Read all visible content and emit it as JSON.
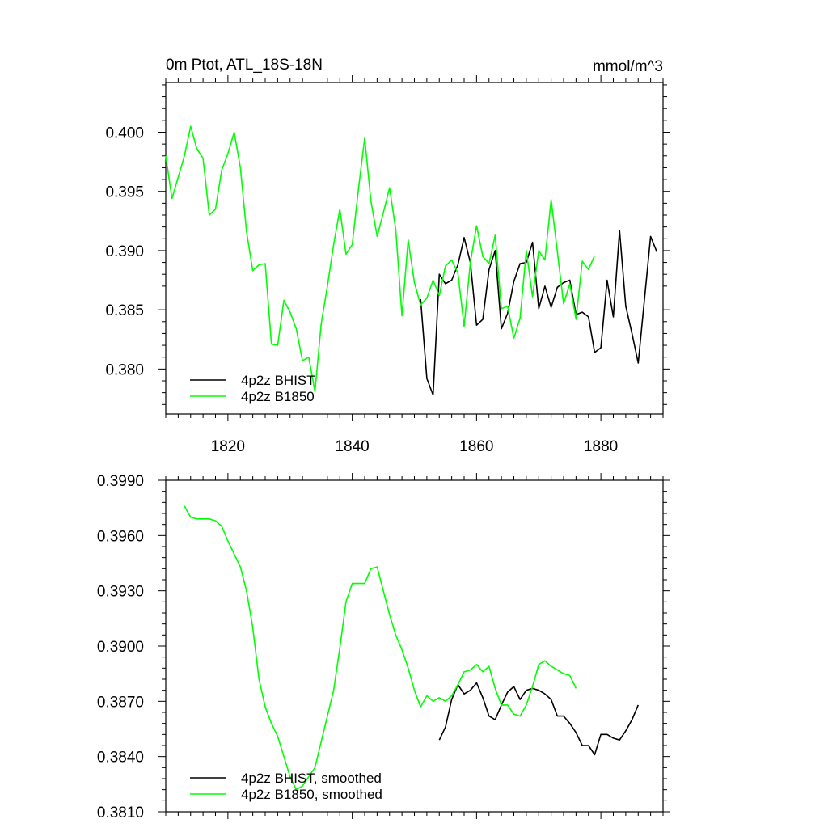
{
  "chart_data": [
    {
      "type": "line",
      "title": "0m Ptot, ATL_18S-18N",
      "units": "mmol/m^3",
      "xlim": [
        1810,
        1890
      ],
      "ylim": [
        0.3762,
        0.4042
      ],
      "xticks": [
        1820,
        1840,
        1860,
        1880
      ],
      "xtick_labels": [
        "1820",
        "1840",
        "1860",
        "1880"
      ],
      "yticks": [
        0.38,
        0.385,
        0.39,
        0.395,
        0.4
      ],
      "ytick_labels": [
        "0.380",
        "0.385",
        "0.390",
        "0.395",
        "0.400"
      ],
      "grid": false,
      "legend": "bottom-left",
      "series": [
        {
          "name": "4p2z BHIST",
          "color": "#000000",
          "x": [
            1851,
            1852,
            1853,
            1854,
            1855,
            1856,
            1857,
            1858,
            1859,
            1860,
            1861,
            1862,
            1863,
            1864,
            1865,
            1866,
            1867,
            1868,
            1869,
            1870,
            1871,
            1872,
            1873,
            1874,
            1875,
            1876,
            1877,
            1878,
            1879,
            1880,
            1881,
            1882,
            1883,
            1884,
            1885,
            1886,
            1887,
            1888,
            1889
          ],
          "y": [
            0.3859,
            0.3792,
            0.3778,
            0.388,
            0.3872,
            0.3875,
            0.3888,
            0.3911,
            0.389,
            0.3837,
            0.3842,
            0.3884,
            0.39,
            0.3834,
            0.3847,
            0.3874,
            0.3889,
            0.389,
            0.3907,
            0.3851,
            0.387,
            0.3852,
            0.3869,
            0.3873,
            0.3875,
            0.3846,
            0.3848,
            0.3844,
            0.3814,
            0.3818,
            0.3875,
            0.3844,
            0.3917,
            0.3853,
            0.383,
            0.3805,
            0.3858,
            0.3912,
            0.3899
          ]
        },
        {
          "name": "4p2z B1850",
          "color": "#00ff00",
          "x": [
            1810,
            1811,
            1812,
            1813,
            1814,
            1815,
            1816,
            1817,
            1818,
            1819,
            1820,
            1821,
            1822,
            1823,
            1824,
            1825,
            1826,
            1827,
            1828,
            1829,
            1830,
            1831,
            1832,
            1833,
            1834,
            1835,
            1836,
            1837,
            1838,
            1839,
            1840,
            1841,
            1842,
            1843,
            1844,
            1845,
            1846,
            1847,
            1848,
            1849,
            1850,
            1851,
            1852,
            1853,
            1854,
            1855,
            1856,
            1857,
            1858,
            1859,
            1860,
            1861,
            1862,
            1863,
            1864,
            1865,
            1866,
            1867,
            1868,
            1869,
            1870,
            1871,
            1872,
            1873,
            1874,
            1875,
            1876,
            1877,
            1878,
            1879
          ],
          "y": [
            0.398,
            0.3944,
            0.3962,
            0.398,
            0.4005,
            0.3986,
            0.3978,
            0.393,
            0.3935,
            0.3968,
            0.3982,
            0.4,
            0.397,
            0.3916,
            0.3883,
            0.3888,
            0.3889,
            0.3821,
            0.382,
            0.3858,
            0.3848,
            0.3834,
            0.3807,
            0.381,
            0.3781,
            0.3838,
            0.387,
            0.3905,
            0.3935,
            0.3897,
            0.3905,
            0.3952,
            0.3995,
            0.3942,
            0.3912,
            0.3932,
            0.3953,
            0.3918,
            0.3845,
            0.3909,
            0.3873,
            0.3854,
            0.386,
            0.3875,
            0.3862,
            0.3887,
            0.3892,
            0.3881,
            0.3836,
            0.389,
            0.3921,
            0.3895,
            0.3889,
            0.3913,
            0.3851,
            0.3853,
            0.3826,
            0.3843,
            0.39,
            0.3861,
            0.39,
            0.3892,
            0.3943,
            0.3899,
            0.3855,
            0.3872,
            0.3842,
            0.3891,
            0.3884,
            0.3896
          ]
        }
      ]
    },
    {
      "type": "line",
      "title": "",
      "xlim": [
        1810,
        1890
      ],
      "ylim": [
        0.381,
        0.399
      ],
      "xticks": [
        1820,
        1840,
        1860,
        1880
      ],
      "yticks": [
        0.381,
        0.384,
        0.387,
        0.39,
        0.393,
        0.396,
        0.399
      ],
      "ytick_labels": [
        "0.3810",
        "0.3840",
        "0.3870",
        "0.3900",
        "0.3930",
        "0.3960",
        "0.3990"
      ],
      "grid": false,
      "legend": "bottom-left",
      "series": [
        {
          "name": "4p2z BHIST, smoothed",
          "color": "#000000",
          "x": [
            1854,
            1855,
            1856,
            1857,
            1858,
            1859,
            1860,
            1861,
            1862,
            1863,
            1864,
            1865,
            1866,
            1867,
            1868,
            1869,
            1870,
            1871,
            1872,
            1873,
            1874,
            1875,
            1876,
            1877,
            1878,
            1879,
            1880,
            1881,
            1882,
            1883,
            1884,
            1885,
            1886
          ],
          "y": [
            0.3849,
            0.3856,
            0.3871,
            0.3879,
            0.3874,
            0.3876,
            0.388,
            0.3872,
            0.3862,
            0.386,
            0.3868,
            0.3875,
            0.3878,
            0.3871,
            0.3876,
            0.3877,
            0.3876,
            0.3874,
            0.3871,
            0.3862,
            0.3862,
            0.3858,
            0.3853,
            0.3846,
            0.3846,
            0.3841,
            0.3852,
            0.3852,
            0.385,
            0.3849,
            0.3854,
            0.386,
            0.3868
          ]
        },
        {
          "name": "4p2z B1850, smoothed",
          "color": "#00ff00",
          "x": [
            1813,
            1814,
            1815,
            1816,
            1817,
            1818,
            1819,
            1820,
            1821,
            1822,
            1823,
            1824,
            1825,
            1826,
            1827,
            1828,
            1829,
            1830,
            1831,
            1832,
            1833,
            1834,
            1835,
            1836,
            1837,
            1838,
            1839,
            1840,
            1841,
            1842,
            1843,
            1844,
            1845,
            1846,
            1847,
            1848,
            1849,
            1850,
            1851,
            1852,
            1853,
            1854,
            1855,
            1856,
            1857,
            1858,
            1859,
            1860,
            1861,
            1862,
            1863,
            1864,
            1865,
            1866,
            1867,
            1868,
            1869,
            1870,
            1871,
            1872,
            1873,
            1874,
            1875,
            1876
          ],
          "y": [
            0.3976,
            0.397,
            0.3969,
            0.3969,
            0.3969,
            0.3968,
            0.3965,
            0.3957,
            0.395,
            0.3943,
            0.393,
            0.391,
            0.3882,
            0.3867,
            0.3858,
            0.3851,
            0.384,
            0.3829,
            0.3822,
            0.3824,
            0.3829,
            0.3834,
            0.3848,
            0.3862,
            0.3876,
            0.3899,
            0.3924,
            0.3934,
            0.3934,
            0.3934,
            0.3942,
            0.3943,
            0.393,
            0.3917,
            0.3906,
            0.3898,
            0.3888,
            0.3876,
            0.3867,
            0.3873,
            0.387,
            0.3872,
            0.387,
            0.3873,
            0.3879,
            0.3886,
            0.3887,
            0.389,
            0.3886,
            0.3889,
            0.3877,
            0.3868,
            0.3868,
            0.3863,
            0.3862,
            0.3868,
            0.3878,
            0.389,
            0.3892,
            0.3889,
            0.3887,
            0.3885,
            0.3884,
            0.3877
          ]
        }
      ]
    }
  ]
}
